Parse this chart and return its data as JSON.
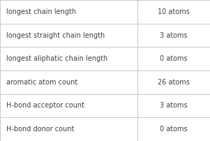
{
  "rows": [
    {
      "label": "longest chain length",
      "value": "10 atoms"
    },
    {
      "label": "longest straight chain length",
      "value": "3 atoms"
    },
    {
      "label": "longest aliphatic chain length",
      "value": "0 atoms"
    },
    {
      "label": "aromatic atom count",
      "value": "26 atoms"
    },
    {
      "label": "H-bond acceptor count",
      "value": "3 atoms"
    },
    {
      "label": "H-bond donor count",
      "value": "0 atoms"
    }
  ],
  "bg_color": "#ffffff",
  "border_color": "#c8c8c8",
  "text_color": "#404040",
  "font_size": 7.0,
  "col_split": 0.655,
  "fig_width": 3.01,
  "fig_height": 2.02,
  "dpi": 100
}
